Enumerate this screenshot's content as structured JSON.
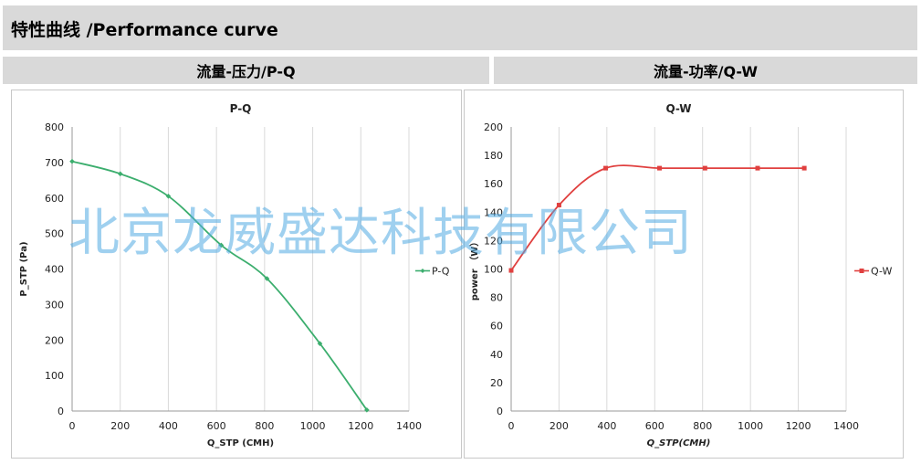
{
  "header": {
    "title": "特性曲线 /Performance curve"
  },
  "subheaders": {
    "left": "流量-压力/P-Q",
    "right": "流量-功率/Q-W"
  },
  "watermark": "北京龙威盛达科技有限公司",
  "colors": {
    "pq_line": "#3cae6e",
    "qw_line": "#e0403f",
    "grid": "#d9d9d9",
    "header_bg": "#d9d9d9"
  },
  "chart_data": [
    {
      "type": "line",
      "title": "P-Q",
      "xlabel": "Q_STP (CMH)",
      "ylabel": "P_STP (Pa)",
      "xlim": [
        0,
        1400
      ],
      "ylim": [
        0,
        800
      ],
      "xticks": [
        0,
        200,
        400,
        600,
        800,
        1000,
        1200,
        1400
      ],
      "yticks": [
        0,
        100,
        200,
        300,
        400,
        500,
        600,
        700,
        800
      ],
      "grid": "vertical",
      "legend": "right",
      "series": [
        {
          "name": "P-Q",
          "marker": "diamond",
          "x": [
            0,
            200,
            400,
            620,
            810,
            1030,
            1225
          ],
          "y": [
            703,
            668,
            605,
            467,
            373,
            190,
            3
          ]
        }
      ]
    },
    {
      "type": "line",
      "title": "Q-W",
      "xlabel": "Q_STP(CMH)",
      "ylabel": "power （W）",
      "xlim": [
        0,
        1400
      ],
      "ylim": [
        0,
        200
      ],
      "xticks": [
        0,
        200,
        400,
        600,
        800,
        1000,
        1200,
        1400
      ],
      "yticks": [
        0,
        20,
        40,
        60,
        80,
        100,
        120,
        140,
        160,
        180,
        200
      ],
      "grid": "vertical",
      "legend": "right",
      "series": [
        {
          "name": "Q-W",
          "marker": "square",
          "x": [
            0,
            200,
            395,
            620,
            810,
            1030,
            1225
          ],
          "y": [
            99,
            145,
            171,
            171,
            171,
            171,
            171
          ]
        }
      ]
    }
  ]
}
